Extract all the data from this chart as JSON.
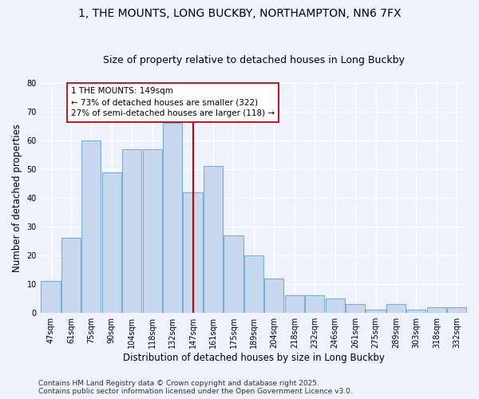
{
  "title": "1, THE MOUNTS, LONG BUCKBY, NORTHAMPTON, NN6 7FX",
  "subtitle": "Size of property relative to detached houses in Long Buckby",
  "xlabel": "Distribution of detached houses by size in Long Buckby",
  "ylabel": "Number of detached properties",
  "categories": [
    "47sqm",
    "61sqm",
    "75sqm",
    "90sqm",
    "104sqm",
    "118sqm",
    "132sqm",
    "147sqm",
    "161sqm",
    "175sqm",
    "189sqm",
    "204sqm",
    "218sqm",
    "232sqm",
    "246sqm",
    "261sqm",
    "275sqm",
    "289sqm",
    "303sqm",
    "318sqm",
    "332sqm"
  ],
  "values": [
    11,
    26,
    60,
    49,
    57,
    57,
    66,
    42,
    51,
    27,
    20,
    12,
    6,
    6,
    5,
    3,
    1,
    3,
    1,
    2,
    2
  ],
  "bar_color": "#c8d8ee",
  "bar_edge_color": "#7aafd4",
  "vline_x_index": 7,
  "vline_color": "#cc0000",
  "annotation_line1": "1 THE MOUNTS: 149sqm",
  "annotation_line2": "← 73% of detached houses are smaller (322)",
  "annotation_line3": "27% of semi-detached houses are larger (118) →",
  "annotation_box_color": "#ffffff",
  "annotation_box_edge": "#cc0000",
  "background_color": "#eef2fb",
  "grid_color": "#ffffff",
  "ylim": [
    0,
    80
  ],
  "yticks": [
    0,
    10,
    20,
    30,
    40,
    50,
    60,
    70,
    80
  ],
  "footer_line1": "Contains HM Land Registry data © Crown copyright and database right 2025.",
  "footer_line2": "Contains public sector information licensed under the Open Government Licence v3.0.",
  "title_fontsize": 10,
  "subtitle_fontsize": 9,
  "axis_label_fontsize": 8.5,
  "tick_fontsize": 7,
  "annotation_fontsize": 7.5,
  "footer_fontsize": 6.5
}
